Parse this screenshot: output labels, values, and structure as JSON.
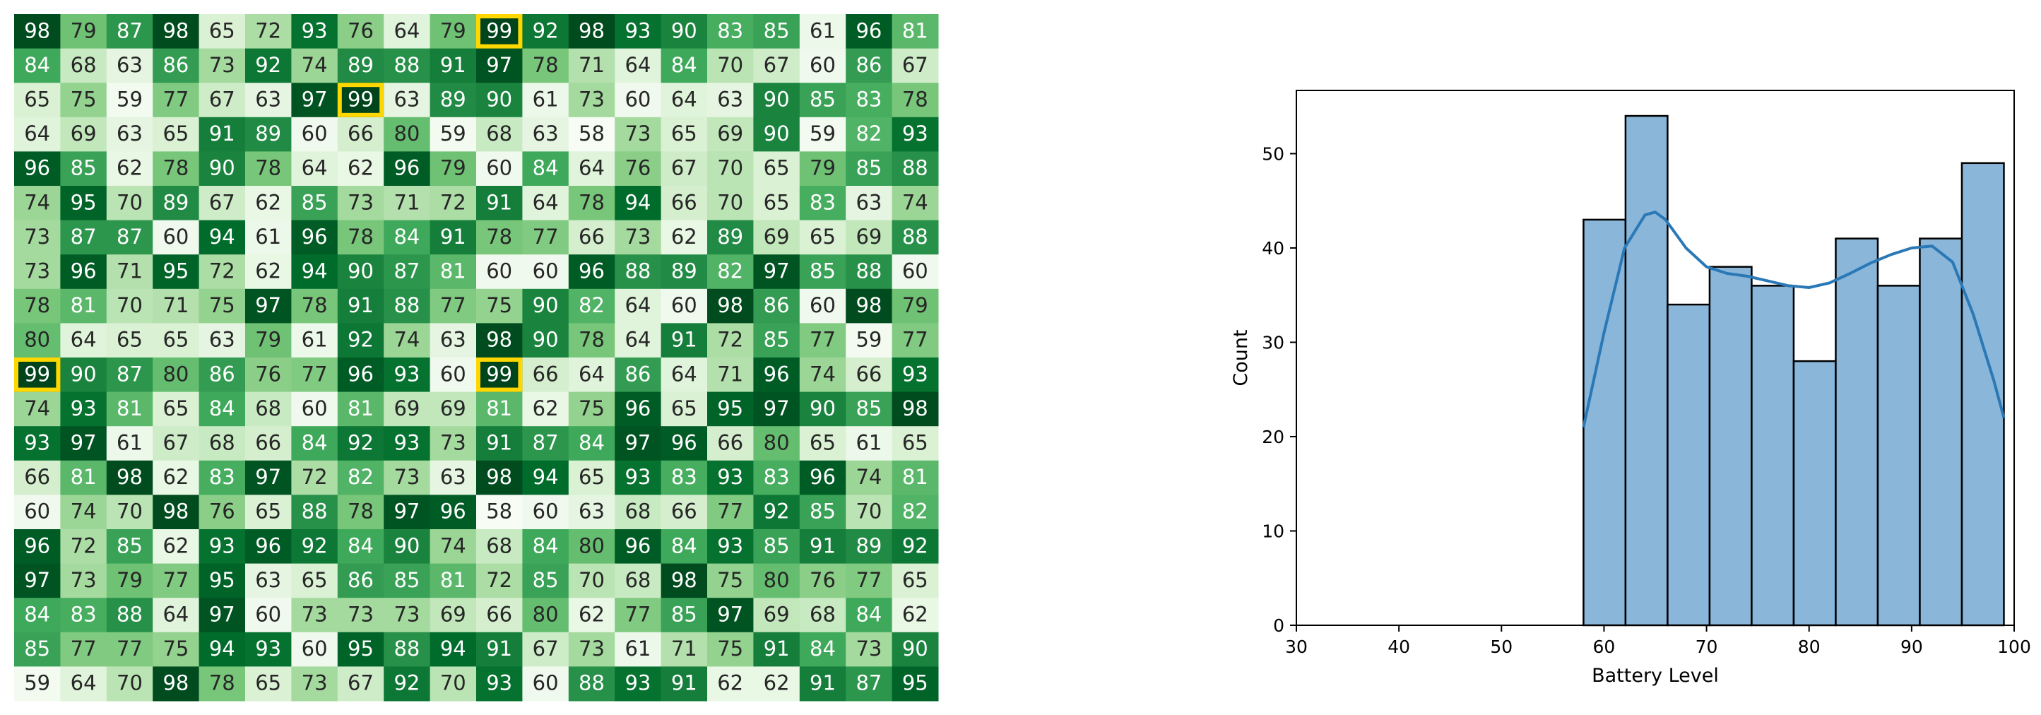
{
  "chart_data": [
    {
      "type": "heatmap",
      "colormap": "Greens",
      "vmin": 58,
      "vmax": 99,
      "highlight_color": "#FFD700",
      "highlight_value": 99,
      "rows": [
        [
          98,
          79,
          87,
          98,
          65,
          72,
          93,
          76,
          64,
          79,
          99,
          92,
          98,
          93,
          90,
          83,
          85,
          61,
          96,
          81
        ],
        [
          84,
          68,
          63,
          86,
          73,
          92,
          74,
          89,
          88,
          91,
          97,
          78,
          71,
          64,
          84,
          70,
          67,
          60,
          86,
          67
        ],
        [
          65,
          75,
          59,
          77,
          67,
          63,
          97,
          99,
          63,
          89,
          90,
          61,
          73,
          60,
          64,
          63,
          90,
          85,
          83,
          78
        ],
        [
          64,
          69,
          63,
          65,
          91,
          89,
          60,
          66,
          80,
          59,
          68,
          63,
          58,
          73,
          65,
          69,
          90,
          59,
          82,
          93
        ],
        [
          96,
          85,
          62,
          78,
          90,
          78,
          64,
          62,
          96,
          79,
          60,
          84,
          64,
          76,
          67,
          70,
          65,
          79,
          85,
          88
        ],
        [
          74,
          95,
          70,
          89,
          67,
          62,
          85,
          73,
          71,
          72,
          91,
          64,
          78,
          94,
          66,
          70,
          65,
          83,
          63,
          74
        ],
        [
          73,
          87,
          87,
          60,
          94,
          61,
          96,
          78,
          84,
          91,
          78,
          77,
          66,
          73,
          62,
          89,
          69,
          65,
          69,
          88
        ],
        [
          73,
          96,
          71,
          95,
          72,
          62,
          94,
          90,
          87,
          81,
          60,
          60,
          96,
          88,
          89,
          82,
          97,
          85,
          88,
          60
        ],
        [
          78,
          81,
          70,
          71,
          75,
          97,
          78,
          91,
          88,
          77,
          75,
          90,
          82,
          64,
          60,
          98,
          86,
          60,
          98,
          79
        ],
        [
          80,
          64,
          65,
          65,
          63,
          79,
          61,
          92,
          74,
          63,
          98,
          90,
          78,
          64,
          91,
          72,
          85,
          77,
          59,
          77
        ],
        [
          99,
          90,
          87,
          80,
          86,
          76,
          77,
          96,
          93,
          60,
          99,
          66,
          64,
          86,
          64,
          71,
          96,
          74,
          66,
          93
        ],
        [
          74,
          93,
          81,
          65,
          84,
          68,
          60,
          81,
          69,
          69,
          81,
          62,
          75,
          96,
          65,
          95,
          97,
          90,
          85,
          98
        ],
        [
          93,
          97,
          61,
          67,
          68,
          66,
          84,
          92,
          93,
          73,
          91,
          87,
          84,
          97,
          96,
          66,
          80,
          65,
          61,
          65
        ],
        [
          66,
          81,
          98,
          62,
          83,
          97,
          72,
          82,
          73,
          63,
          98,
          94,
          65,
          93,
          83,
          93,
          83,
          96,
          74,
          81
        ],
        [
          60,
          74,
          70,
          98,
          76,
          65,
          88,
          78,
          97,
          96,
          58,
          60,
          63,
          68,
          66,
          77,
          92,
          85,
          70,
          82
        ],
        [
          96,
          72,
          85,
          62,
          93,
          96,
          92,
          84,
          90,
          74,
          68,
          84,
          80,
          96,
          84,
          93,
          85,
          91,
          89,
          92
        ],
        [
          97,
          73,
          79,
          77,
          95,
          63,
          65,
          86,
          85,
          81,
          72,
          85,
          70,
          68,
          98,
          75,
          80,
          76,
          77,
          65
        ],
        [
          84,
          83,
          88,
          64,
          97,
          60,
          73,
          73,
          73,
          69,
          66,
          80,
          62,
          77,
          85,
          97,
          69,
          68,
          84,
          62
        ],
        [
          85,
          77,
          77,
          75,
          94,
          93,
          60,
          95,
          88,
          94,
          91,
          67,
          73,
          61,
          71,
          75,
          91,
          84,
          73,
          90
        ],
        [
          59,
          64,
          70,
          98,
          78,
          65,
          73,
          67,
          92,
          70,
          93,
          60,
          88,
          93,
          91,
          62,
          62,
          91,
          87,
          95
        ]
      ]
    },
    {
      "type": "bar",
      "subtype": "histogram",
      "xlabel": "Battery Level",
      "ylabel": "Count",
      "xlim": [
        30,
        100
      ],
      "ylim": [
        0,
        56.7
      ],
      "xticks": [
        "30",
        "40",
        "50",
        "60",
        "70",
        "80",
        "90",
        "100"
      ],
      "yticks": [
        "0",
        "10",
        "20",
        "30",
        "40",
        "50"
      ],
      "bar_color": "#89b6d9",
      "edge_color": "#000000",
      "kde_color": "#2a78b5",
      "bins": [
        {
          "start": 58.0,
          "end": 62.1,
          "count": 43
        },
        {
          "start": 62.1,
          "end": 66.2,
          "count": 54
        },
        {
          "start": 66.2,
          "end": 70.3,
          "count": 34
        },
        {
          "start": 70.3,
          "end": 74.4,
          "count": 38
        },
        {
          "start": 74.4,
          "end": 78.5,
          "count": 36
        },
        {
          "start": 78.5,
          "end": 82.6,
          "count": 28
        },
        {
          "start": 82.6,
          "end": 86.7,
          "count": 41
        },
        {
          "start": 86.7,
          "end": 90.8,
          "count": 36
        },
        {
          "start": 90.8,
          "end": 94.9,
          "count": 41
        },
        {
          "start": 94.9,
          "end": 99.0,
          "count": 49
        }
      ],
      "kde": {
        "x": [
          58,
          60,
          62,
          64,
          65,
          66,
          68,
          70,
          72,
          74,
          76,
          78,
          80,
          82,
          84,
          86,
          88,
          90,
          92,
          94,
          96,
          98,
          99
        ],
        "y": [
          21,
          31,
          40,
          43.5,
          43.8,
          43,
          40,
          38,
          37.3,
          37,
          36.5,
          36,
          35.8,
          36.3,
          37.3,
          38.4,
          39.3,
          40,
          40.2,
          38.5,
          33,
          26,
          22
        ]
      }
    }
  ]
}
